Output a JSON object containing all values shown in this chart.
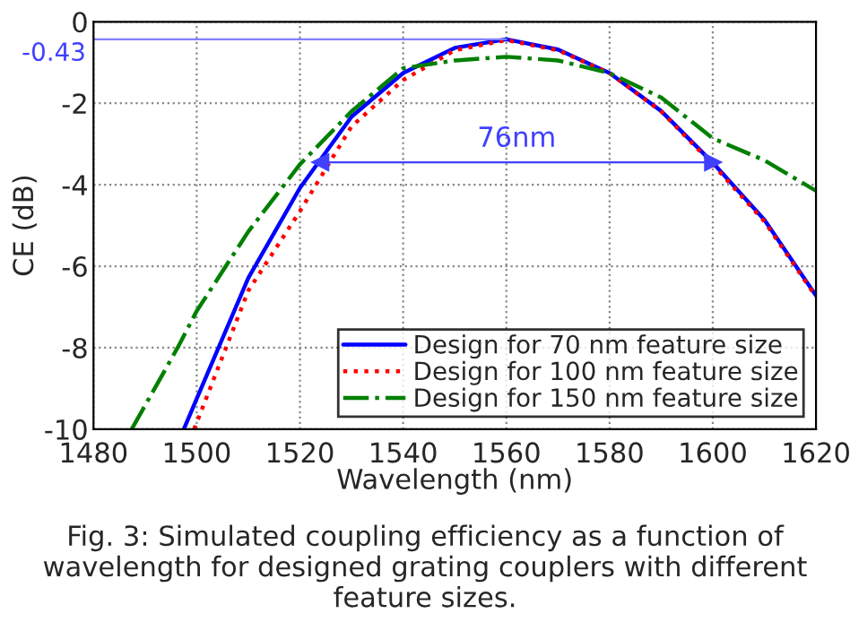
{
  "chart_data": {
    "type": "line",
    "xlabel": "Wavelength (nm)",
    "ylabel": "CE (dB)",
    "xlim": [
      1480,
      1620
    ],
    "xticks": [
      1480,
      1500,
      1520,
      1540,
      1560,
      1580,
      1600,
      1620
    ],
    "ylim": [
      -10,
      0
    ],
    "yticks": [
      -10,
      -8,
      -6,
      -4,
      -2,
      0
    ],
    "grid": true,
    "legend": "bottom right",
    "series": [
      {
        "name": "Design for 70 nm feature size",
        "color": "#0000ff",
        "line_style": "solid",
        "x": [
          1497.5,
          1500,
          1510,
          1520,
          1530,
          1540,
          1550,
          1560,
          1570,
          1580,
          1590,
          1600,
          1610,
          1620
        ],
        "values": [
          -10,
          -9.25,
          -6.29,
          -4.08,
          -2.33,
          -1.26,
          -0.64,
          -0.43,
          -0.68,
          -1.26,
          -2.19,
          -3.46,
          -4.86,
          -6.72
        ]
      },
      {
        "name": "Design for 100 nm feature size",
        "color": "#ff0000",
        "line_style": "dotted",
        "x": [
          1499.5,
          1510,
          1520,
          1530,
          1540,
          1550,
          1560,
          1570,
          1580,
          1590,
          1600,
          1610,
          1620
        ],
        "values": [
          -10,
          -6.6,
          -4.65,
          -2.57,
          -1.43,
          -0.7,
          -0.45,
          -0.7,
          -1.26,
          -2.2,
          -3.5,
          -4.9,
          -6.75
        ]
      },
      {
        "name": "Design for 150 nm feature size",
        "color": "#008000",
        "line_style": "dashdot",
        "x": [
          1487.4,
          1496.3,
          1500,
          1510,
          1520,
          1530,
          1540,
          1550,
          1560,
          1570,
          1580,
          1590,
          1600,
          1610,
          1620
        ],
        "values": [
          -10,
          -8,
          -7.1,
          -5.15,
          -3.5,
          -2.2,
          -1.14,
          -0.95,
          -0.86,
          -0.95,
          -1.26,
          -1.86,
          -2.86,
          -3.4,
          -4.15
        ]
      },
      {
        "color": "#8080ff",
        "line_style": "solid",
        "x": [
          1480,
          1560
        ],
        "values": [
          -0.43,
          -0.43
        ]
      },
      {
        "color": "#4040ff",
        "line_style": "solid",
        "marker": "triangle",
        "x": [
          1524,
          1600
        ],
        "values": [
          -3.45,
          -3.45
        ]
      }
    ],
    "annotations": [
      {
        "text": "76nm",
        "x": 1562,
        "y": -3.45
      },
      {
        "text": "-0.43",
        "x": 1480,
        "y": -0.43
      },
      "Fig. 3: Simulated coupling efficiency as a function of wavelength for designed grating couplers with different feature sizes."
    ]
  }
}
